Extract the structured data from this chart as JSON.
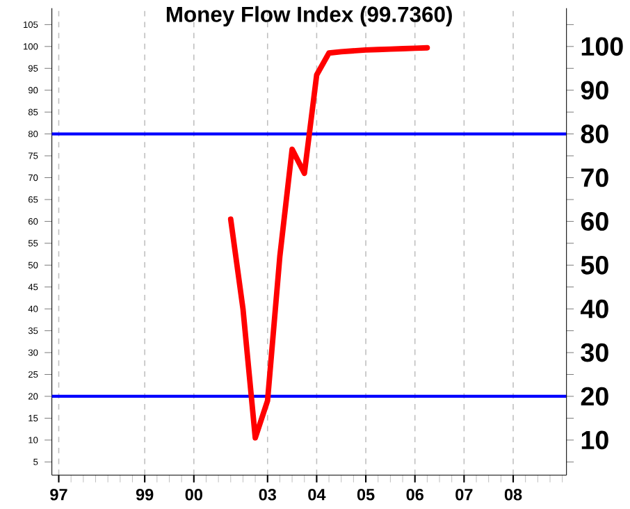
{
  "chart_data": {
    "type": "line",
    "title": "Money Flow Index (99.7360)",
    "categories": [
      "97",
      null,
      null,
      null,
      null,
      null,
      null,
      "99",
      null,
      null,
      null,
      "00",
      null,
      null,
      null,
      null,
      null,
      "03",
      null,
      null,
      null,
      "04",
      null,
      null,
      null,
      "05",
      null,
      null,
      null,
      "06",
      null,
      null,
      null,
      "07",
      null,
      null,
      null,
      "08",
      null,
      null,
      null,
      null
    ],
    "series": [
      {
        "color": "#ff0000",
        "values": [
          null,
          null,
          null,
          null,
          null,
          null,
          null,
          null,
          null,
          null,
          null,
          null,
          null,
          null,
          60.5,
          40,
          10.5,
          19,
          52,
          76.5,
          71,
          93.5,
          98.5,
          98.8,
          99,
          99.2,
          99.3,
          99.4,
          99.5,
          99.6,
          99.7,
          null,
          null,
          null,
          null,
          null,
          null,
          null,
          null,
          null,
          null,
          null
        ]
      }
    ],
    "ylim": [
      2,
      108.75
    ],
    "yticks": [
      5,
      10,
      15,
      20,
      25,
      30,
      35,
      40,
      45,
      50,
      55,
      60,
      65,
      70,
      75,
      80,
      85,
      90,
      95,
      100,
      105
    ],
    "y2lim": [
      2,
      108.75
    ],
    "y2ticks": [
      {
        "value": 5,
        "label": null
      },
      10,
      {
        "value": 15,
        "label": null
      },
      20,
      {
        "value": 25,
        "label": null
      },
      30,
      {
        "value": 35,
        "label": null
      },
      40,
      {
        "value": 45,
        "label": null
      },
      50,
      {
        "value": 55,
        "label": null
      },
      60,
      {
        "value": 65,
        "label": null
      },
      70,
      {
        "value": 75,
        "label": null
      },
      80,
      {
        "value": 85,
        "label": null
      },
      90,
      {
        "value": 95,
        "label": null
      },
      100,
      {
        "value": 105,
        "label": null
      }
    ],
    "ref_lines": [
      {
        "axis": "y",
        "value": 80,
        "color": "#0000ff"
      },
      {
        "axis": "y",
        "value": 20,
        "color": "#0000ff"
      }
    ],
    "grid": "x",
    "marker": "none",
    "line_style": "solid"
  }
}
